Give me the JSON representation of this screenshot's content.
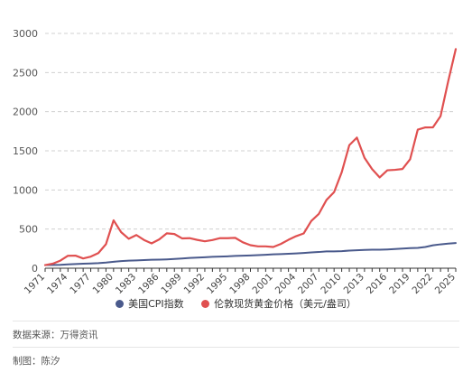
{
  "chart_data": {
    "type": "line",
    "x": [
      1971,
      1972,
      1973,
      1974,
      1975,
      1976,
      1977,
      1978,
      1979,
      1980,
      1981,
      1982,
      1983,
      1984,
      1985,
      1986,
      1987,
      1988,
      1989,
      1990,
      1991,
      1992,
      1993,
      1994,
      1995,
      1996,
      1997,
      1998,
      1999,
      2000,
      2001,
      2002,
      2003,
      2004,
      2005,
      2006,
      2007,
      2008,
      2009,
      2010,
      2011,
      2012,
      2013,
      2014,
      2015,
      2016,
      2017,
      2018,
      2019,
      2020,
      2021,
      2022,
      2023,
      2024,
      2025
    ],
    "x_tick_labels": [
      "1971",
      "1974",
      "1977",
      "1980",
      "1983",
      "1986",
      "1989",
      "1992",
      "1995",
      "1998",
      "2001",
      "2004",
      "2007",
      "2010",
      "2013",
      "2016",
      "2019",
      "2022",
      "2025"
    ],
    "series": [
      {
        "name": "美国CPI指数",
        "color": "#4a5a8c",
        "values": [
          40,
          42,
          44,
          49,
          54,
          57,
          61,
          65,
          72,
          82,
          91,
          96,
          100,
          104,
          108,
          110,
          113,
          118,
          124,
          131,
          136,
          140,
          145,
          148,
          152,
          157,
          160,
          163,
          167,
          172,
          177,
          180,
          184,
          189,
          195,
          202,
          207,
          215,
          215,
          218,
          225,
          230,
          233,
          237,
          237,
          240,
          245,
          251,
          256,
          259,
          271,
          293,
          305,
          314,
          322
        ]
      },
      {
        "name": "伦敦现货黄金价格（美元/盎司）",
        "color": "#e05050",
        "values": [
          40,
          58,
          97,
          159,
          161,
          125,
          148,
          193,
          307,
          612,
          460,
          376,
          424,
          361,
          317,
          368,
          446,
          437,
          381,
          384,
          362,
          344,
          360,
          384,
          384,
          388,
          331,
          294,
          279,
          279,
          271,
          310,
          363,
          409,
          444,
          604,
          695,
          872,
          972,
          1225,
          1572,
          1669,
          1411,
          1266,
          1160,
          1251,
          1257,
          1268,
          1393,
          1770,
          1799,
          1800,
          1943,
          2386,
          2800
        ]
      }
    ],
    "ylim": [
      0,
      3000
    ],
    "y_ticks": [
      0,
      500,
      1000,
      1500,
      2000,
      2500,
      3000
    ],
    "grid": true,
    "legend_position": "bottom"
  },
  "footer": {
    "source": "数据来源：万得资讯",
    "author": "制图：陈汐"
  }
}
